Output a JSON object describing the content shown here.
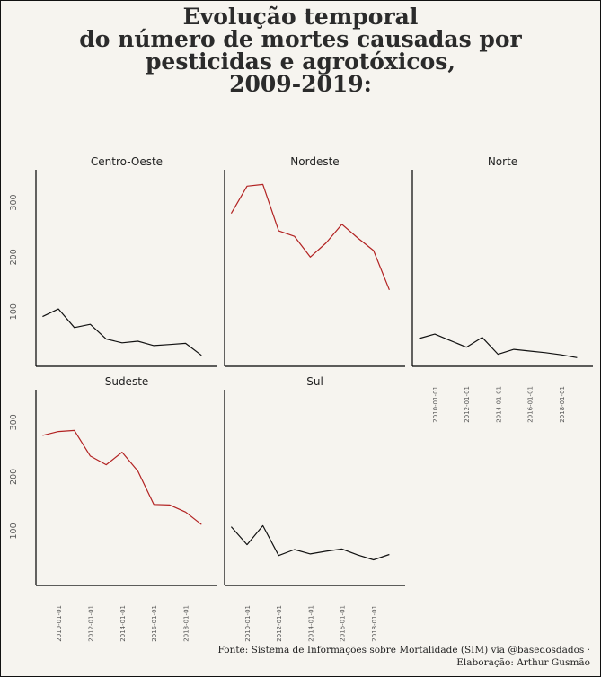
{
  "chart_data": {
    "type": "line",
    "title_lines": [
      "Evolução temporal",
      "do número de mortes causadas por",
      "pesticidas e agrotóxicos,",
      "2009-2019:"
    ],
    "x_ticks": [
      "2010-01-01",
      "2012-01-01",
      "2014-01-01",
      "2016-01-01",
      "2018-01-01"
    ],
    "y_ticks": [
      100,
      200,
      300
    ],
    "ylim": [
      0,
      360
    ],
    "xlim": [
      "2008-08-01",
      "2020-01-01"
    ],
    "grid": false,
    "colors": {
      "normal": "#111111",
      "highlight": "#b22222"
    },
    "panels": [
      {
        "name": "Centro-Oeste",
        "highlight": false,
        "x": [
          "2009-01-01",
          "2010-01-01",
          "2011-01-01",
          "2012-01-01",
          "2013-01-01",
          "2014-01-01",
          "2015-01-01",
          "2016-01-01",
          "2017-01-01",
          "2018-01-01",
          "2019-01-01"
        ],
        "values": [
          91,
          105,
          71,
          77,
          50,
          43,
          46,
          38,
          40,
          42,
          20
        ]
      },
      {
        "name": "Nordeste",
        "highlight": true,
        "x": [
          "2009-01-01",
          "2010-01-01",
          "2011-01-01",
          "2012-01-01",
          "2013-01-01",
          "2014-01-01",
          "2015-01-01",
          "2016-01-01",
          "2017-01-01",
          "2018-01-01",
          "2019-01-01"
        ],
        "values": [
          280,
          330,
          333,
          248,
          238,
          200,
          226,
          260,
          235,
          212,
          140
        ]
      },
      {
        "name": "Norte",
        "highlight": false,
        "x": [
          "2009-01-01",
          "2010-01-01",
          "2011-01-01",
          "2012-01-01",
          "2013-01-01",
          "2014-01-01",
          "2015-01-01",
          "2016-01-01",
          "2017-01-01",
          "2018-01-01",
          "2019-01-01"
        ],
        "values": [
          51,
          59,
          47,
          35,
          53,
          22,
          31,
          28,
          25,
          21,
          16
        ]
      },
      {
        "name": "Sudeste",
        "highlight": true,
        "x": [
          "2009-01-01",
          "2010-01-01",
          "2011-01-01",
          "2012-01-01",
          "2013-01-01",
          "2014-01-01",
          "2015-01-01",
          "2016-01-01",
          "2017-01-01",
          "2018-01-01",
          "2019-01-01"
        ],
        "values": [
          276,
          283,
          285,
          238,
          222,
          245,
          210,
          149,
          148,
          135,
          112
        ]
      },
      {
        "name": "Sul",
        "highlight": false,
        "x": [
          "2009-01-01",
          "2010-01-01",
          "2011-01-01",
          "2012-01-01",
          "2013-01-01",
          "2014-01-01",
          "2015-01-01",
          "2016-01-01",
          "2017-01-01",
          "2018-01-01",
          "2019-01-01"
        ],
        "values": [
          108,
          75,
          110,
          55,
          66,
          58,
          63,
          67,
          56,
          47,
          57
        ]
      }
    ]
  },
  "caption_lines": [
    "Fonte: Sistema de Informações sobre Mortalidade (SIM) via @basedosdados ·",
    "Elaboração: Arthur Gusmão"
  ]
}
